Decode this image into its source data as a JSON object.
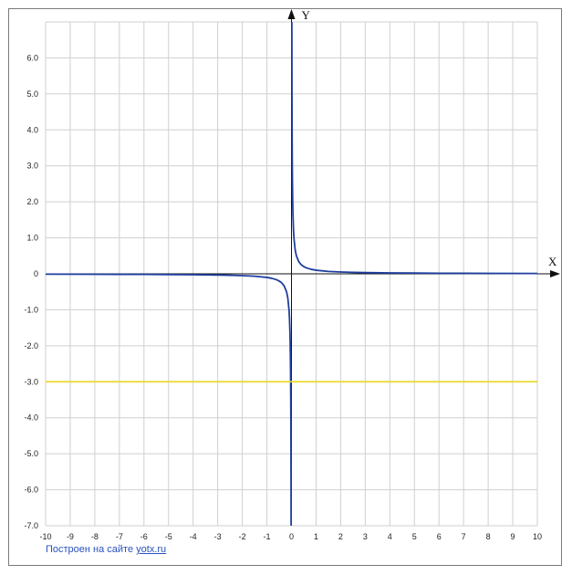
{
  "chart_data": {
    "type": "line",
    "title": "",
    "xlabel": "X",
    "ylabel": "Y",
    "xlim": [
      -10,
      10
    ],
    "ylim": [
      -7,
      7
    ],
    "grid": true,
    "x_ticks": [
      "-10",
      "-9",
      "-8",
      "-7",
      "-6",
      "-5",
      "-4",
      "-3",
      "-2",
      "-1",
      "0",
      "1",
      "2",
      "3",
      "4",
      "5",
      "6",
      "7",
      "8",
      "9",
      "10"
    ],
    "y_ticks": [
      "6.0",
      "5.0",
      "4.0",
      "3.0",
      "2.0",
      "1.0",
      "0",
      "-1.0",
      "-2.0",
      "-3.0",
      "-4.0",
      "-5.0",
      "-6.0",
      "-7.0"
    ],
    "series": [
      {
        "color": "#1f3f9f",
        "x": [
          -10,
          -8,
          -6,
          -5,
          -4,
          -3,
          -2.5,
          -2,
          -1.5,
          -1,
          -0.8,
          -0.6,
          -0.5,
          -0.4,
          -0.3,
          -0.2,
          -0.15,
          -0.1,
          -0.08,
          -0.06,
          -0.05,
          -0.04,
          -0.035,
          -0.03,
          -0.025,
          -0.02,
          -0.0143,
          0.0143,
          0.02,
          0.025,
          0.03,
          0.035,
          0.04,
          0.05,
          0.06,
          0.08,
          0.1,
          0.15,
          0.2,
          0.3,
          0.4,
          0.5,
          0.6,
          0.8,
          1,
          1.5,
          2,
          2.5,
          3,
          4,
          5,
          6,
          8,
          10
        ],
        "y": [
          -0.01,
          -0.0125,
          -0.0167,
          -0.02,
          -0.025,
          -0.0333,
          -0.04,
          -0.05,
          -0.0667,
          -0.1,
          -0.125,
          -0.1667,
          -0.2,
          -0.25,
          -0.3333,
          -0.5,
          -0.6667,
          -1,
          -1.25,
          -1.6667,
          -2,
          -2.5,
          -2.8571,
          -3.3333,
          -4,
          -5,
          -7,
          7,
          5,
          4,
          3.3333,
          2.8571,
          2.5,
          2,
          1.6667,
          1.25,
          1,
          0.6667,
          0.5,
          0.3333,
          0.25,
          0.2,
          0.1667,
          0.125,
          0.1,
          0.0667,
          0.05,
          0.04,
          0.0333,
          0.025,
          0.02,
          0.0167,
          0.0125,
          0.01
        ]
      },
      {
        "color": "#e8d92a",
        "x": [
          -10,
          10
        ],
        "y": [
          -3,
          -3
        ]
      }
    ]
  },
  "footer": {
    "prefix": "Построен на сайте ",
    "link": "yotx.ru"
  }
}
